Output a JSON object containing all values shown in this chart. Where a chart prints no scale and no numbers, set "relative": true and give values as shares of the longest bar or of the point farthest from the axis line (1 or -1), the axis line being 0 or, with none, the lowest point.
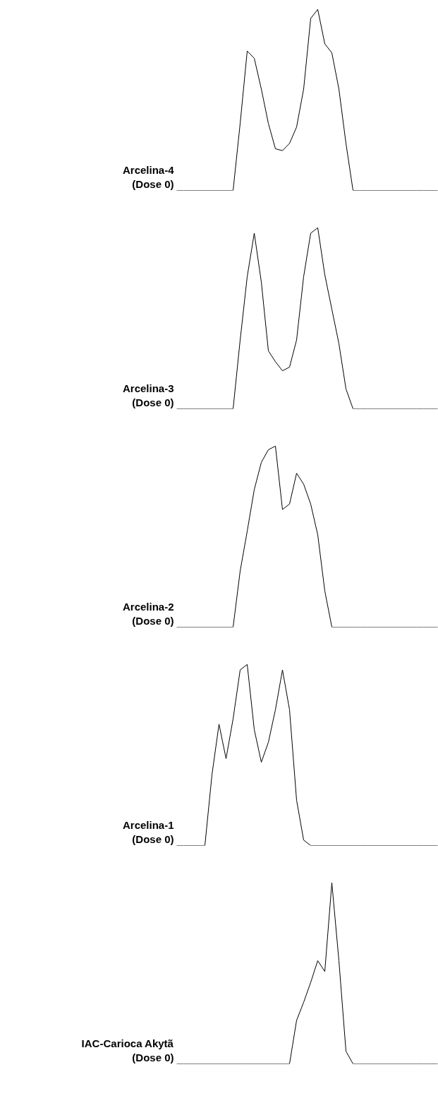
{
  "chart_data": [
    {
      "type": "line",
      "relative": true,
      "grid": false,
      "marker": "none",
      "line_style": "solid",
      "tick_labels": false,
      "categories": [
        null,
        null,
        null,
        null,
        null,
        null,
        null,
        null,
        null,
        null,
        null,
        null,
        null,
        null,
        null,
        null,
        null,
        null,
        null,
        null,
        null,
        null,
        null,
        null,
        null,
        null,
        null,
        null,
        null,
        null,
        null,
        null,
        null,
        null,
        null,
        null,
        null,
        null
      ],
      "series": [
        {
          "name": "Arcelina-4\n(Dose 0)",
          "color": "#000000",
          "values": [
            0,
            0,
            0,
            0,
            0,
            0,
            0,
            0,
            0,
            0.37,
            0.77,
            0.73,
            0.56,
            0.37,
            0.23,
            0.22,
            0.26,
            0.35,
            0.56,
            0.95,
            1.0,
            0.81,
            0.76,
            0.56,
            0.26,
            0,
            0,
            0,
            0,
            0,
            0,
            0,
            0,
            0,
            0,
            0,
            0,
            0
          ]
        }
      ]
    },
    {
      "type": "line",
      "relative": true,
      "grid": false,
      "marker": "none",
      "line_style": "solid",
      "tick_labels": false,
      "categories": [
        null,
        null,
        null,
        null,
        null,
        null,
        null,
        null,
        null,
        null,
        null,
        null,
        null,
        null,
        null,
        null,
        null,
        null,
        null,
        null,
        null,
        null,
        null,
        null,
        null,
        null,
        null,
        null,
        null,
        null,
        null,
        null,
        null,
        null,
        null,
        null,
        null,
        null
      ],
      "series": [
        {
          "name": "Arcelina-3\n(Dose 0)",
          "color": "#000000",
          "values": [
            0,
            0,
            0,
            0,
            0,
            0,
            0,
            0,
            0,
            0.38,
            0.73,
            0.97,
            0.7,
            0.32,
            0.26,
            0.21,
            0.23,
            0.38,
            0.73,
            0.97,
            1.0,
            0.74,
            0.55,
            0.36,
            0.11,
            0,
            0,
            0,
            0,
            0,
            0,
            0,
            0,
            0,
            0,
            0,
            0,
            0
          ]
        }
      ]
    },
    {
      "type": "line",
      "relative": true,
      "grid": false,
      "marker": "none",
      "line_style": "solid",
      "tick_labels": false,
      "categories": [
        null,
        null,
        null,
        null,
        null,
        null,
        null,
        null,
        null,
        null,
        null,
        null,
        null,
        null,
        null,
        null,
        null,
        null,
        null,
        null,
        null,
        null,
        null,
        null,
        null,
        null,
        null,
        null,
        null,
        null,
        null,
        null,
        null,
        null,
        null,
        null,
        null,
        null
      ],
      "series": [
        {
          "name": "Arcelina-2\n(Dose 0)",
          "color": "#000000",
          "values": [
            0,
            0,
            0,
            0,
            0,
            0,
            0,
            0,
            0,
            0.31,
            0.53,
            0.76,
            0.91,
            0.98,
            1.0,
            0.65,
            0.68,
            0.85,
            0.79,
            0.68,
            0.51,
            0.2,
            0,
            0,
            0,
            0,
            0,
            0,
            0,
            0,
            0,
            0,
            0,
            0,
            0,
            0,
            0,
            0
          ]
        }
      ]
    },
    {
      "type": "line",
      "relative": true,
      "grid": false,
      "marker": "none",
      "line_style": "solid",
      "tick_labels": false,
      "categories": [
        null,
        null,
        null,
        null,
        null,
        null,
        null,
        null,
        null,
        null,
        null,
        null,
        null,
        null,
        null,
        null,
        null,
        null,
        null,
        null,
        null,
        null,
        null,
        null,
        null,
        null,
        null,
        null,
        null,
        null,
        null,
        null,
        null,
        null,
        null,
        null,
        null,
        null
      ],
      "series": [
        {
          "name": "Arcelina-1\n(Dose 0)",
          "color": "#000000",
          "values": [
            0,
            0,
            0,
            0,
            0,
            0.39,
            0.67,
            0.48,
            0.7,
            0.97,
            1.0,
            0.64,
            0.46,
            0.57,
            0.75,
            0.97,
            0.75,
            0.25,
            0.03,
            0,
            0,
            0,
            0,
            0,
            0,
            0,
            0,
            0,
            0,
            0,
            0,
            0,
            0,
            0,
            0,
            0,
            0,
            0
          ]
        }
      ]
    },
    {
      "type": "line",
      "relative": true,
      "grid": false,
      "marker": "none",
      "line_style": "solid",
      "tick_labels": false,
      "categories": [
        null,
        null,
        null,
        null,
        null,
        null,
        null,
        null,
        null,
        null,
        null,
        null,
        null,
        null,
        null,
        null,
        null,
        null,
        null,
        null,
        null,
        null,
        null,
        null,
        null,
        null,
        null,
        null,
        null,
        null,
        null,
        null,
        null,
        null,
        null,
        null,
        null,
        null
      ],
      "series": [
        {
          "name": "IAC-Carioca Akytã\n(Dose 0)",
          "color": "#000000",
          "values": [
            0,
            0,
            0,
            0,
            0,
            0,
            0,
            0,
            0,
            0,
            0,
            0,
            0,
            0,
            0,
            0,
            0,
            0.24,
            0.34,
            0.45,
            0.57,
            0.51,
            1.0,
            0.57,
            0.07,
            0,
            0,
            0,
            0,
            0,
            0,
            0,
            0,
            0,
            0,
            0,
            0,
            0
          ]
        }
      ]
    }
  ]
}
